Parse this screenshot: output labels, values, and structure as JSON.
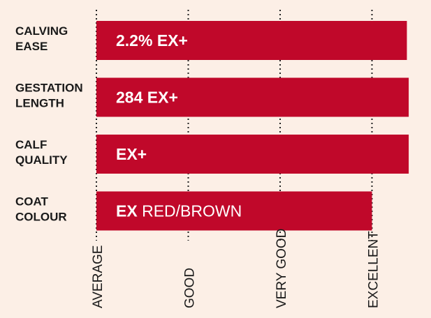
{
  "chart_data": {
    "type": "bar",
    "orientation": "horizontal",
    "scale_categories": [
      "AVERAGE",
      "GOOD",
      "VERY GOOD",
      "EXCELLENT"
    ],
    "xlim": [
      0,
      3.4
    ],
    "grid": true,
    "bar_color": "#c0082a",
    "background": "#fcefe6",
    "bars": [
      {
        "label_lines": [
          "CALVING",
          "EASE"
        ],
        "value": 3.38,
        "value_bold": "2.2% EX+",
        "value_regular": ""
      },
      {
        "label_lines": [
          "GESTATION",
          "LENGTH"
        ],
        "value": 3.4,
        "value_bold": "284 EX+",
        "value_regular": ""
      },
      {
        "label_lines": [
          "CALF",
          "QUALITY"
        ],
        "value": 3.4,
        "value_bold": "EX+",
        "value_regular": ""
      },
      {
        "label_lines": [
          "COAT",
          "COLOUR"
        ],
        "value": 3.0,
        "value_bold": "EX",
        "value_regular": "RED/BROWN"
      }
    ]
  }
}
